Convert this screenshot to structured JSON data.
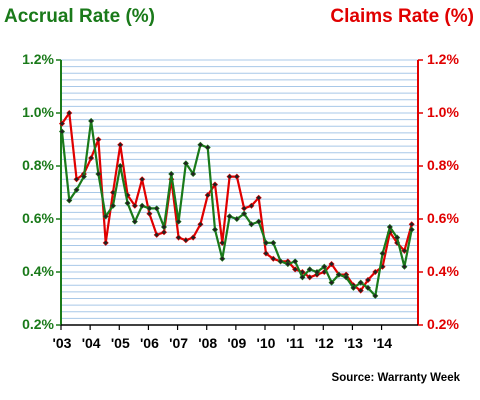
{
  "chart_data": {
    "type": "line",
    "left_title": "Accrual Rate (%)",
    "right_title": "Claims Rate (%)",
    "source": "Source: Warranty Week",
    "y_ticks": [
      "0.2%",
      "0.4%",
      "0.6%",
      "0.8%",
      "1.0%",
      "1.2%"
    ],
    "y_tick_values": [
      0.2,
      0.4,
      0.6,
      0.8,
      1.0,
      1.2
    ],
    "ylim": [
      0.2,
      1.2
    ],
    "x_ticks": [
      "'03",
      "'04",
      "'05",
      "'06",
      "'07",
      "'08",
      "'09",
      "'10",
      "'11",
      "'12",
      "'13",
      "'14"
    ],
    "grid": true,
    "colors": {
      "accrual": "#1a7a1a",
      "claims": "#e00000",
      "axis_left": "#1a7a1a",
      "axis_right": "#e00000",
      "grid": "#a8c8e8"
    },
    "series": [
      {
        "name": "Accrual Rate (%)",
        "axis": "left",
        "color": "#1a7a1a",
        "values": [
          0.93,
          0.67,
          0.71,
          0.76,
          0.97,
          0.77,
          0.61,
          0.65,
          0.8,
          0.66,
          0.59,
          0.65,
          0.64,
          0.64,
          0.57,
          0.77,
          0.59,
          0.81,
          0.77,
          0.88,
          0.87,
          0.56,
          0.45,
          0.61,
          0.6,
          0.62,
          0.58,
          0.59,
          0.51,
          0.51,
          0.44,
          0.43,
          0.44,
          0.38,
          0.41,
          0.4,
          0.42,
          0.36,
          0.39,
          0.38,
          0.34,
          0.36,
          0.34,
          0.31,
          0.47,
          0.57,
          0.53,
          0.42,
          0.56
        ]
      },
      {
        "name": "Claims Rate (%)",
        "axis": "right",
        "color": "#e00000",
        "values": [
          0.96,
          1.0,
          0.75,
          0.77,
          0.83,
          0.9,
          0.51,
          0.7,
          0.88,
          0.69,
          0.65,
          0.75,
          0.62,
          0.54,
          0.55,
          0.75,
          0.53,
          0.52,
          0.53,
          0.58,
          0.69,
          0.73,
          0.51,
          0.76,
          0.76,
          0.64,
          0.65,
          0.68,
          0.47,
          0.45,
          0.44,
          0.44,
          0.41,
          0.4,
          0.38,
          0.39,
          0.4,
          0.43,
          0.39,
          0.39,
          0.35,
          0.33,
          0.37,
          0.4,
          0.42,
          0.55,
          0.51,
          0.48,
          0.58
        ]
      }
    ]
  }
}
